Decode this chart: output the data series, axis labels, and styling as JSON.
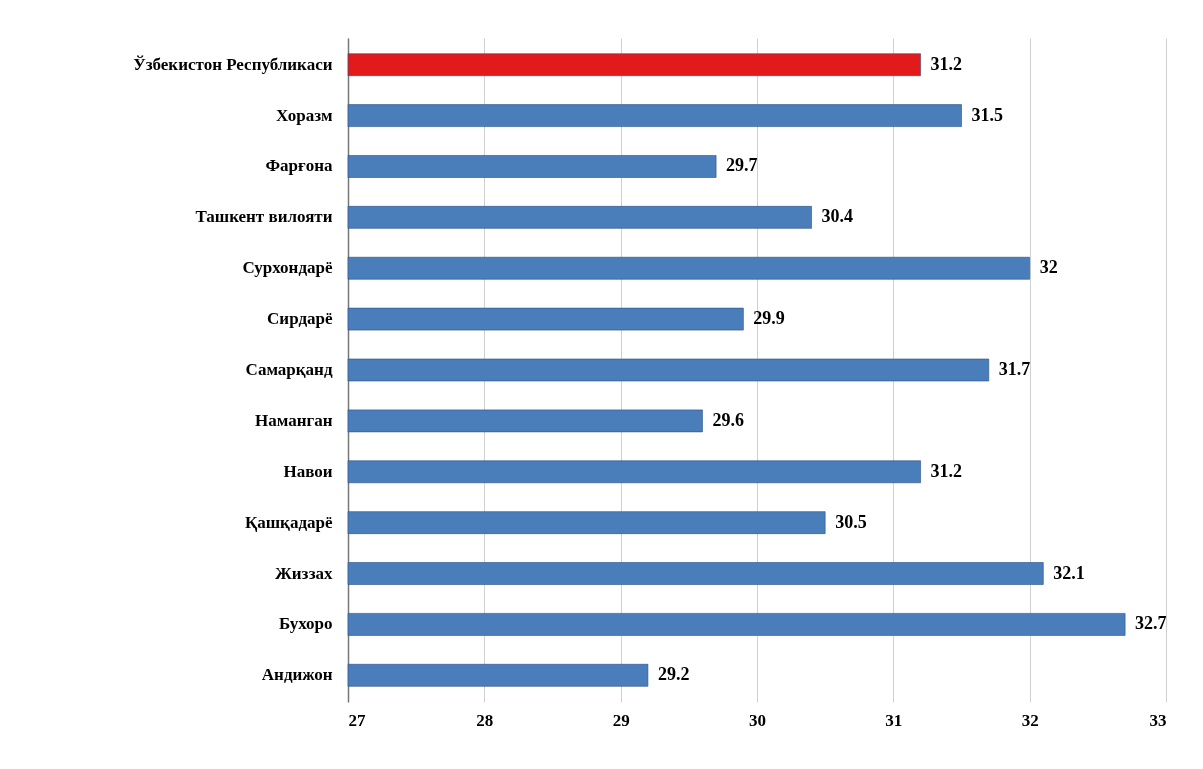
{
  "chart_data": {
    "type": "bar",
    "orientation": "horizontal",
    "categories": [
      "Ўзбекистон Республикаси",
      "Хоразм",
      "Фарғона",
      "Ташкент вилояти",
      "Сурхондарё",
      "Сирдарё",
      "Самарқанд",
      "Наманган",
      "Навои",
      "Қашқадарё",
      "Жиззах",
      "Бухоро",
      "Андижон"
    ],
    "values": [
      31.2,
      31.5,
      29.7,
      30.4,
      32,
      29.9,
      31.7,
      29.6,
      31.2,
      30.5,
      32.1,
      32.7,
      29.2
    ],
    "colors": [
      "#e31a1c",
      "#4a7ebb",
      "#4a7ebb",
      "#4a7ebb",
      "#4a7ebb",
      "#4a7ebb",
      "#4a7ebb",
      "#4a7ebb",
      "#4a7ebb",
      "#4a7ebb",
      "#4a7ebb",
      "#4a7ebb",
      "#4a7ebb"
    ],
    "xlim": [
      27,
      33
    ],
    "xticks": [
      27,
      28,
      29,
      30,
      31,
      32,
      33
    ],
    "grid": "x",
    "data_labels": true
  }
}
